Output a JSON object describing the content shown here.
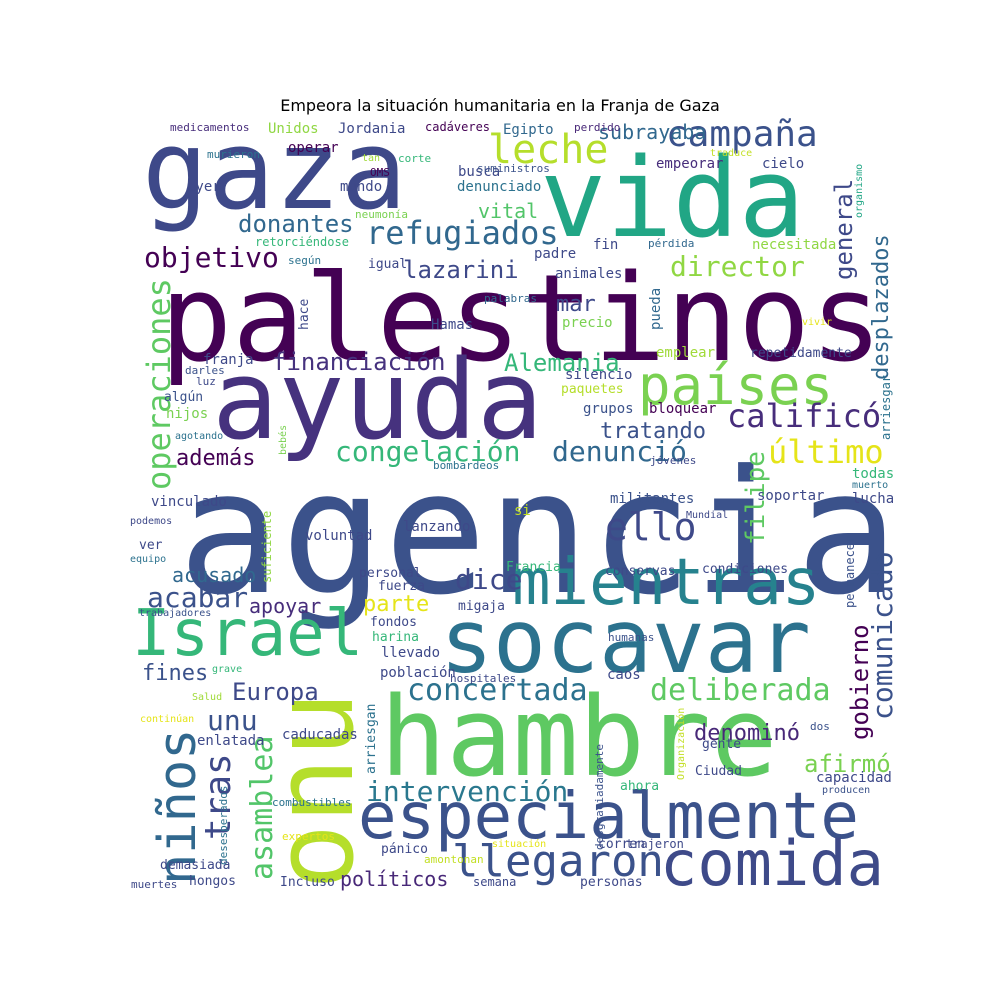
{
  "title": "Empeora la situación humanitaria en la Franja de Gaza",
  "word_cloud": {
    "words": [
      {
        "text": "agencia",
        "color": "#3b528b"
      },
      {
        "text": "palestinos",
        "color": "#440154"
      },
      {
        "text": "gaza",
        "color": "#3e4989"
      },
      {
        "text": "vida",
        "color": "#21a685"
      },
      {
        "text": "ayuda",
        "color": "#46327e"
      },
      {
        "text": "hambre",
        "color": "#5ec962"
      },
      {
        "text": "onu",
        "color": "#b5de2b"
      },
      {
        "text": "socavar",
        "color": "#2c728e"
      },
      {
        "text": "mientras",
        "color": "#26828e"
      },
      {
        "text": "especialmente",
        "color": "#3b528b"
      },
      {
        "text": "Israel",
        "color": "#35b779"
      },
      {
        "text": "comida",
        "color": "#3e4a89"
      },
      {
        "text": "países",
        "color": "#7ad151"
      },
      {
        "text": "niños",
        "color": "#31688e"
      },
      {
        "text": "llegaron",
        "color": "#3b528b"
      },
      {
        "text": "leche",
        "color": "#b5de2b"
      },
      {
        "text": "campaña",
        "color": "#3b528b"
      },
      {
        "text": "refugiados",
        "color": "#31688e"
      },
      {
        "text": "calificó",
        "color": "#472d7b"
      },
      {
        "text": "último",
        "color": "#e5e419"
      },
      {
        "text": "ello",
        "color": "#3e4989"
      },
      {
        "text": "operaciones",
        "color": "#5ec962"
      },
      {
        "text": "intervención",
        "color": "#2a788e"
      },
      {
        "text": "concertada",
        "color": "#2c728e"
      },
      {
        "text": "deliberada",
        "color": "#5ec962"
      },
      {
        "text": "comunicado",
        "color": "#3b528b"
      },
      {
        "text": "denunció",
        "color": "#31688e"
      },
      {
        "text": "congelación",
        "color": "#35b779"
      },
      {
        "text": "asamblea",
        "color": "#52c569"
      },
      {
        "text": "tras",
        "color": "#3e4989"
      },
      {
        "text": "director",
        "color": "#90d743"
      },
      {
        "text": "objetivo",
        "color": "#440154"
      },
      {
        "text": "donantes",
        "color": "#31688e"
      },
      {
        "text": "lazarini",
        "color": "#3e4989"
      },
      {
        "text": "financiación",
        "color": "#46327e"
      },
      {
        "text": "Alemania",
        "color": "#35b779"
      },
      {
        "text": "dice",
        "color": "#3e4989"
      },
      {
        "text": "acabar",
        "color": "#3b528b"
      },
      {
        "text": "Europa",
        "color": "#3e4989"
      },
      {
        "text": "unu",
        "color": "#3b528b"
      },
      {
        "text": "subrayaba",
        "color": "#31688e"
      },
      {
        "text": "general",
        "color": "#3e4989"
      },
      {
        "text": "desplazados",
        "color": "#31688e"
      },
      {
        "text": "filipe",
        "color": "#5ec962"
      },
      {
        "text": "gobierno",
        "color": "#440154"
      },
      {
        "text": "afirmó",
        "color": "#7ad151"
      },
      {
        "text": "denominó",
        "color": "#482878"
      },
      {
        "text": "tratando",
        "color": "#3b528b"
      },
      {
        "text": "además",
        "color": "#440154"
      },
      {
        "text": "parte",
        "color": "#e5e419"
      },
      {
        "text": "apoyar",
        "color": "#472d7b"
      },
      {
        "text": "acusado",
        "color": "#31688e"
      },
      {
        "text": "fines",
        "color": "#3b528b"
      },
      {
        "text": "políticos",
        "color": "#482878"
      },
      {
        "text": "vital",
        "color": "#52c569"
      },
      {
        "text": "mar",
        "color": "#3e4989"
      },
      {
        "text": "medicamentos",
        "color": "#472d7b"
      },
      {
        "text": "Unidos",
        "color": "#90d743"
      },
      {
        "text": "Jordania",
        "color": "#3e4989"
      },
      {
        "text": "cadáveres",
        "color": "#440154"
      },
      {
        "text": "Egipto",
        "color": "#31688e"
      },
      {
        "text": "perdido",
        "color": "#482878"
      },
      {
        "text": "murieron",
        "color": "#2c728e"
      },
      {
        "text": "operar",
        "color": "#440154"
      },
      {
        "text": "tan",
        "color": "#a0da39"
      },
      {
        "text": "corte",
        "color": "#35b779"
      },
      {
        "text": "OMS",
        "color": "#440154"
      },
      {
        "text": "busca",
        "color": "#3e4989"
      },
      {
        "text": "suministros",
        "color": "#3b528b"
      },
      {
        "text": "empeorar",
        "color": "#472d7b"
      },
      {
        "text": "traduce",
        "color": "#c2df23"
      },
      {
        "text": "cielo",
        "color": "#3e4989"
      },
      {
        "text": "organismo",
        "color": "#21a685"
      },
      {
        "text": "ayer",
        "color": "#3e4989"
      },
      {
        "text": "mundo",
        "color": "#3e4989"
      },
      {
        "text": "denunciado",
        "color": "#2c728e"
      },
      {
        "text": "neumonía",
        "color": "#7ad151"
      },
      {
        "text": "retorciéndose",
        "color": "#35b779"
      },
      {
        "text": "padre",
        "color": "#3e4989"
      },
      {
        "text": "fin",
        "color": "#3e4989"
      },
      {
        "text": "pérdida",
        "color": "#31688e"
      },
      {
        "text": "necesitada",
        "color": "#90d743"
      },
      {
        "text": "según",
        "color": "#2c728e"
      },
      {
        "text": "igual",
        "color": "#3e4989"
      },
      {
        "text": "animales",
        "color": "#3e4989"
      },
      {
        "text": "hace",
        "color": "#3e4989"
      },
      {
        "text": "palabras",
        "color": "#31688e"
      },
      {
        "text": "Hamas",
        "color": "#3e4989"
      },
      {
        "text": "precio",
        "color": "#7ad151"
      },
      {
        "text": "pueda",
        "color": "#31688e"
      },
      {
        "text": "vivir",
        "color": "#e5e419"
      },
      {
        "text": "franja",
        "color": "#3e4989"
      },
      {
        "text": "silencio",
        "color": "#3e4989"
      },
      {
        "text": "emplear",
        "color": "#a0da39"
      },
      {
        "text": "repetidamente",
        "color": "#3e4989"
      },
      {
        "text": "darles",
        "color": "#3b528b"
      },
      {
        "text": "luz",
        "color": "#3e4989"
      },
      {
        "text": "paquetes",
        "color": "#b5de2b"
      },
      {
        "text": "arriesgar",
        "color": "#2c728e"
      },
      {
        "text": "algún",
        "color": "#3b528b"
      },
      {
        "text": "hijos",
        "color": "#7ad151"
      },
      {
        "text": "grupos",
        "color": "#3b528b"
      },
      {
        "text": "bloquear",
        "color": "#440154"
      },
      {
        "text": "agotando",
        "color": "#2c728e"
      },
      {
        "text": "bebés",
        "color": "#7ad151"
      },
      {
        "text": "bombardeos",
        "color": "#2c728e"
      },
      {
        "text": "jóvenes",
        "color": "#3e4989"
      },
      {
        "text": "todas",
        "color": "#35b779"
      },
      {
        "text": "muerto",
        "color": "#2c728e"
      },
      {
        "text": "vinculado",
        "color": "#3e4989"
      },
      {
        "text": "militantes",
        "color": "#3b528b"
      },
      {
        "text": "soportar",
        "color": "#3e4989"
      },
      {
        "text": "lucha",
        "color": "#3e4989"
      },
      {
        "text": "si",
        "color": "#c2df23"
      },
      {
        "text": "podemos",
        "color": "#3e4989"
      },
      {
        "text": "suficiente",
        "color": "#90d743"
      },
      {
        "text": "lanzando",
        "color": "#3e4989"
      },
      {
        "text": "Mundial",
        "color": "#3e4989"
      },
      {
        "text": "permanecer",
        "color": "#3b528b"
      },
      {
        "text": "ver",
        "color": "#3e4989"
      },
      {
        "text": "voluntad",
        "color": "#3e4989"
      },
      {
        "text": "equipo",
        "color": "#2c728e"
      },
      {
        "text": "personal",
        "color": "#3e4989"
      },
      {
        "text": "Francia",
        "color": "#35b779"
      },
      {
        "text": "conservas",
        "color": "#3e4989"
      },
      {
        "text": "condiciones",
        "color": "#3e4989"
      },
      {
        "text": "fuerza",
        "color": "#3e4989"
      },
      {
        "text": "trabajadores",
        "color": "#3b528b"
      },
      {
        "text": "migaja",
        "color": "#3e4989"
      },
      {
        "text": "fondos",
        "color": "#3e4989"
      },
      {
        "text": "harina",
        "color": "#35b779"
      },
      {
        "text": "humanas",
        "color": "#3b528b"
      },
      {
        "text": "grave",
        "color": "#35b779"
      },
      {
        "text": "llevado",
        "color": "#3e4989"
      },
      {
        "text": "Salud",
        "color": "#a0da39"
      },
      {
        "text": "población",
        "color": "#3e4989"
      },
      {
        "text": "hospitales",
        "color": "#3e4989"
      },
      {
        "text": "caos",
        "color": "#3e4989"
      },
      {
        "text": "arriesgan",
        "color": "#2c728e"
      },
      {
        "text": "continúan",
        "color": "#e5e419"
      },
      {
        "text": "Organización",
        "color": "#c2df23"
      },
      {
        "text": "dos",
        "color": "#3b528b"
      },
      {
        "text": "enlatada",
        "color": "#3e4989"
      },
      {
        "text": "caducadas",
        "color": "#3e4989"
      },
      {
        "text": "desgraciadamente",
        "color": "#3b528b"
      },
      {
        "text": "gente",
        "color": "#3e4989"
      },
      {
        "text": "capacidad",
        "color": "#3e4989"
      },
      {
        "text": "Ciudad",
        "color": "#3e4989"
      },
      {
        "text": "desesperados",
        "color": "#2c728e"
      },
      {
        "text": "ahora",
        "color": "#35b779"
      },
      {
        "text": "producen",
        "color": "#3b528b"
      },
      {
        "text": "combustibles",
        "color": "#2c728e"
      },
      {
        "text": "expertos",
        "color": "#e5e419"
      },
      {
        "text": "situación",
        "color": "#e5e419"
      },
      {
        "text": "trajeron",
        "color": "#3e4989"
      },
      {
        "text": "pánico",
        "color": "#3e4989"
      },
      {
        "text": "corren",
        "color": "#3e4989"
      },
      {
        "text": "amontonan",
        "color": "#c2df23"
      },
      {
        "text": "demasiada",
        "color": "#3e4989"
      },
      {
        "text": "hongos",
        "color": "#3e4989"
      },
      {
        "text": "Incluso",
        "color": "#3e4989"
      },
      {
        "text": "semana",
        "color": "#3e4989"
      },
      {
        "text": "personas",
        "color": "#3e4989"
      },
      {
        "text": "muertes",
        "color": "#3e4989"
      }
    ]
  }
}
